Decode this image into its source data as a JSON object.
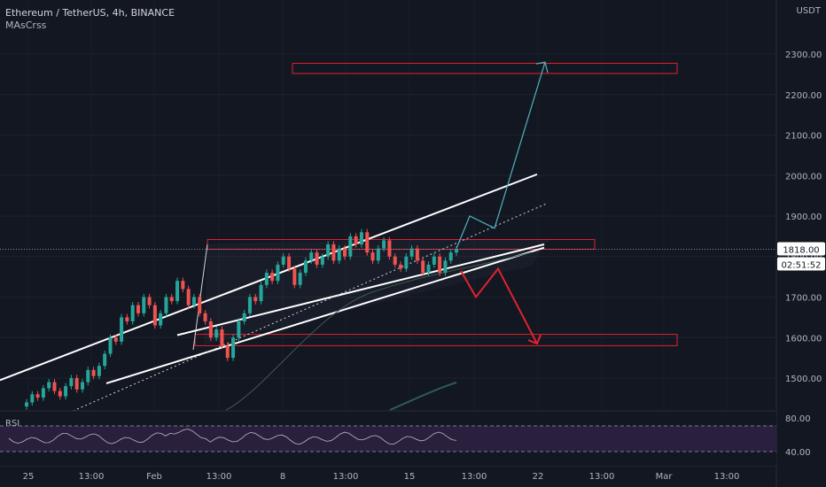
{
  "header": {
    "symbol": "Ethereum / TetherUS, 4h, BINANCE",
    "indicator": "MAsCrss",
    "currency": "USDT"
  },
  "rsi": {
    "label": "RSI",
    "ticks": [
      80,
      40
    ]
  },
  "price_labels": {
    "last": "1818.00",
    "countdown": "02:51:52"
  },
  "colors": {
    "background": "#131722",
    "up": "#26a69a",
    "down": "#ef5350",
    "zone": "#e0222e",
    "channel": "#ffffff",
    "projection_up": "#4fb3bf",
    "projection_down": "#e0222e",
    "rsi_fill": "#2a1f3d"
  },
  "chart_data": {
    "type": "candlestick",
    "title": "Ethereum / TetherUS, 4h, BINANCE",
    "y_ticks": [
      2300,
      2200,
      2100,
      2000,
      1900,
      1800,
      1700,
      1600,
      1500
    ],
    "y_tick_labels": [
      "2300.00",
      "2200.00",
      "2100.00",
      "2000.00",
      "1900.00",
      "1800.00",
      "1700.00",
      "1600.00",
      "1500.00"
    ],
    "ylim": [
      1462,
      2420
    ],
    "x_labels": [
      "25",
      "13:00",
      "Feb",
      "13:00",
      "8",
      "13:00",
      "15",
      "13:00",
      "22",
      "13:00",
      "Mar",
      "13:00"
    ],
    "last_price": 1818,
    "zones": [
      {
        "name": "target-zone",
        "low": 2252,
        "high": 2277
      },
      {
        "name": "resistance-zone",
        "low": 1818,
        "high": 1842
      },
      {
        "name": "support-zone",
        "low": 1580,
        "high": 1608
      }
    ],
    "projection_up": [
      1820,
      1900,
      1870,
      2280
    ],
    "projection_down": [
      1765,
      1700,
      1770,
      1585
    ],
    "candles": [
      1440,
      1460,
      1452,
      1475,
      1490,
      1468,
      1455,
      1480,
      1500,
      1472,
      1490,
      1520,
      1505,
      1530,
      1560,
      1600,
      1590,
      1650,
      1640,
      1680,
      1660,
      1700,
      1680,
      1630,
      1660,
      1700,
      1690,
      1740,
      1720,
      1680,
      1700,
      1660,
      1640,
      1600,
      1620,
      1580,
      1550,
      1600,
      1640,
      1660,
      1700,
      1690,
      1730,
      1760,
      1740,
      1780,
      1800,
      1770,
      1730,
      1760,
      1790,
      1810,
      1780,
      1800,
      1830,
      1790,
      1820,
      1800,
      1850,
      1830,
      1860,
      1810,
      1790,
      1820,
      1840,
      1800,
      1780,
      1770,
      1800,
      1820,
      1790,
      1760,
      1780,
      1800,
      1760,
      1790,
      1810,
      1818
    ]
  }
}
